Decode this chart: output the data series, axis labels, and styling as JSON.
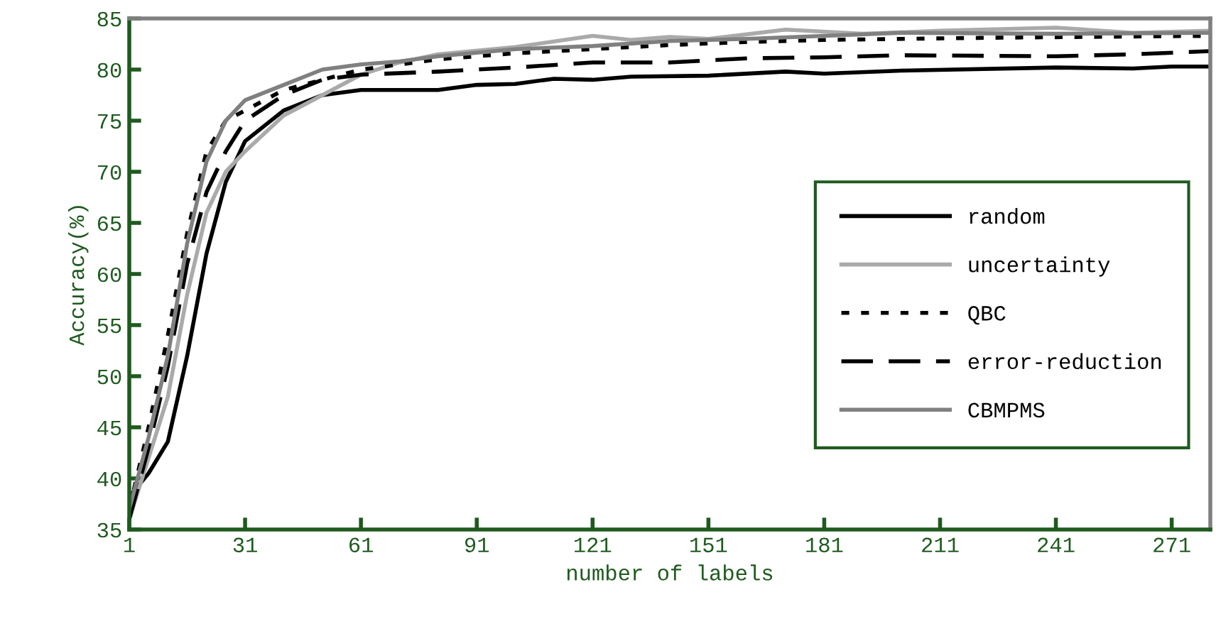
{
  "chart_data": {
    "type": "line",
    "xlabel": "number of labels",
    "ylabel": "Accuracy(%)",
    "xlim": [
      1,
      281
    ],
    "xticks": [
      1,
      31,
      61,
      91,
      121,
      151,
      181,
      211,
      241,
      271
    ],
    "ylim": [
      35,
      85
    ],
    "yticks": [
      35,
      40,
      45,
      50,
      55,
      60,
      65,
      70,
      75,
      80,
      85
    ],
    "grid": false,
    "legend": "right",
    "marker": "none",
    "series": [
      {
        "name": "random",
        "color": "#000000",
        "line_style": "solid",
        "x": [
          1,
          6,
          11,
          16,
          21,
          26,
          31,
          41,
          51,
          61,
          81,
          91,
          101,
          111,
          121,
          131,
          151,
          171,
          181,
          201,
          241,
          261,
          271,
          281
        ],
        "values": [
          38.2,
          40.5,
          43.6,
          52,
          62,
          69,
          73,
          76,
          77.5,
          78,
          78,
          78.5,
          78.6,
          79.1,
          79,
          79.3,
          79.4,
          79.8,
          79.6,
          79.9,
          80.2,
          80.1,
          80.3,
          80.3
        ]
      },
      {
        "name": "uncertainty",
        "color": "#aaaaaa",
        "line_style": "solid",
        "x": [
          1,
          6,
          11,
          16,
          21,
          26,
          31,
          41,
          51,
          61,
          71,
          81,
          101,
          121,
          131,
          141,
          151,
          171,
          191,
          211,
          241,
          261,
          281
        ],
        "values": [
          36,
          42,
          48,
          58,
          66,
          70,
          72,
          75.5,
          77.5,
          79.5,
          80.7,
          81.5,
          82.2,
          83.3,
          82.9,
          83.2,
          83,
          83.9,
          83.5,
          83.8,
          84.1,
          83.6,
          83.8
        ]
      },
      {
        "name": "QBC",
        "color": "#000000",
        "line_style": "dotted",
        "x": [
          1,
          6,
          11,
          16,
          21,
          26,
          31,
          41,
          51,
          61,
          81,
          101,
          121,
          141,
          161,
          181,
          221,
          281
        ],
        "values": [
          37,
          45,
          54,
          64,
          72,
          75,
          76,
          78,
          79,
          80,
          81,
          81.6,
          82,
          82.4,
          82.7,
          82.9,
          83.1,
          83.3
        ]
      },
      {
        "name": "error-reduction",
        "color": "#000000",
        "line_style": "dashed",
        "x": [
          1,
          6,
          11,
          16,
          21,
          26,
          31,
          41,
          51,
          61,
          81,
          101,
          121,
          141,
          161,
          181,
          201,
          241,
          261,
          281
        ],
        "values": [
          36,
          43,
          51,
          61,
          68,
          72,
          75,
          77.5,
          79,
          79.5,
          79.8,
          80.2,
          80.7,
          80.7,
          81.1,
          81.2,
          81.4,
          81.3,
          81.5,
          81.8
        ]
      },
      {
        "name": "CBMPMS",
        "color": "#808080",
        "line_style": "solid",
        "x": [
          1,
          6,
          11,
          16,
          21,
          26,
          31,
          41,
          51,
          61,
          71,
          81,
          101,
          121,
          141,
          161,
          181,
          201,
          241,
          281
        ],
        "values": [
          37,
          44,
          52,
          63,
          71,
          75,
          77,
          78.5,
          80,
          80.5,
          80.8,
          81.3,
          82,
          82.3,
          82.8,
          83,
          83.3,
          83.6,
          83.5,
          83.6
        ]
      }
    ]
  }
}
